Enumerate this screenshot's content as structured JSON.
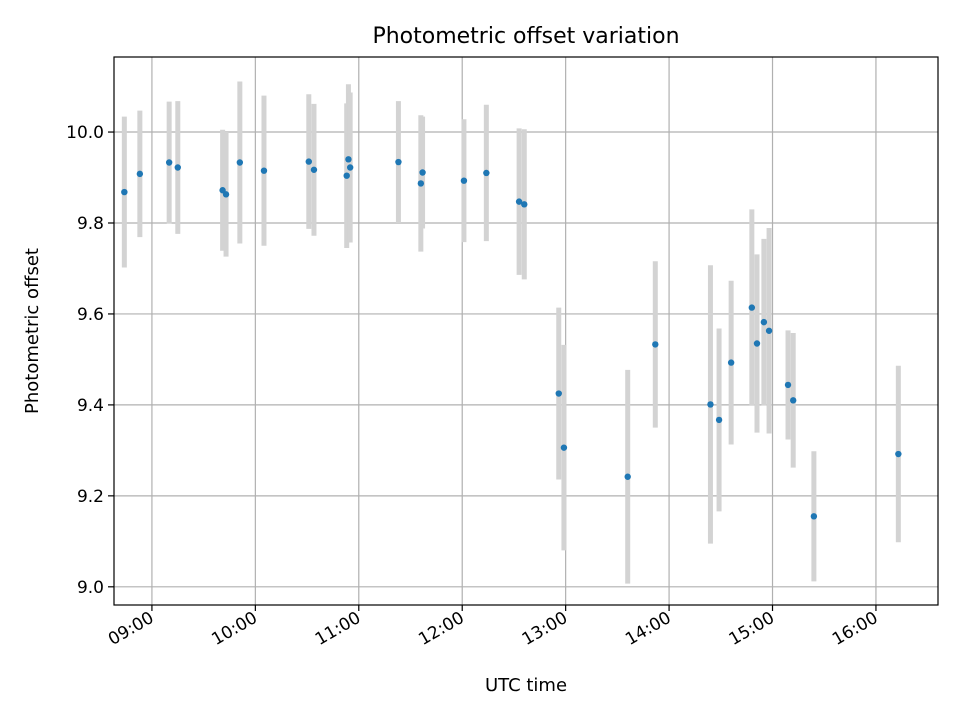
{
  "chart_data": {
    "type": "scatter",
    "title": "Photometric offset variation",
    "xlabel": "UTC time",
    "ylabel": "Photometric offset",
    "x_axis_kind": "time",
    "xlim": [
      "08:38",
      "16:36"
    ],
    "ylim": [
      8.96,
      10.165
    ],
    "x_ticks": [
      "09:00",
      "10:00",
      "11:00",
      "12:00",
      "13:00",
      "14:00",
      "15:00",
      "16:00"
    ],
    "y_ticks": [
      9.0,
      9.2,
      9.4,
      9.6,
      9.8,
      10.0
    ],
    "y_tick_labels": [
      "9.0",
      "9.2",
      "9.4",
      "9.6",
      "9.8",
      "10.0"
    ],
    "grid": true,
    "marker_color": "#1f77b4",
    "errorbar_color": "#d3d3d3",
    "points": [
      {
        "x": "08:44",
        "y": 9.868,
        "err": 0.166
      },
      {
        "x": "08:53",
        "y": 9.908,
        "err": 0.139
      },
      {
        "x": "09:10",
        "y": 9.933,
        "err": 0.134
      },
      {
        "x": "09:15",
        "y": 9.922,
        "err": 0.146
      },
      {
        "x": "09:41",
        "y": 9.872,
        "err": 0.133
      },
      {
        "x": "09:43",
        "y": 9.863,
        "err": 0.137
      },
      {
        "x": "09:51",
        "y": 9.933,
        "err": 0.178
      },
      {
        "x": "10:05",
        "y": 9.915,
        "err": 0.165
      },
      {
        "x": "10:31",
        "y": 9.935,
        "err": 0.148
      },
      {
        "x": "10:34",
        "y": 9.917,
        "err": 0.145
      },
      {
        "x": "10:53",
        "y": 9.904,
        "err": 0.159
      },
      {
        "x": "10:54",
        "y": 9.94,
        "err": 0.165
      },
      {
        "x": "10:55",
        "y": 9.922,
        "err": 0.165
      },
      {
        "x": "11:23",
        "y": 9.934,
        "err": 0.134
      },
      {
        "x": "11:36",
        "y": 9.887,
        "err": 0.15
      },
      {
        "x": "11:37",
        "y": 9.911,
        "err": 0.123
      },
      {
        "x": "12:01",
        "y": 9.893,
        "err": 0.135
      },
      {
        "x": "12:14",
        "y": 9.91,
        "err": 0.15
      },
      {
        "x": "12:33",
        "y": 9.847,
        "err": 0.161
      },
      {
        "x": "12:36",
        "y": 9.841,
        "err": 0.165
      },
      {
        "x": "12:56",
        "y": 9.425,
        "err": 0.189
      },
      {
        "x": "12:59",
        "y": 9.306,
        "err": 0.226
      },
      {
        "x": "13:36",
        "y": 9.242,
        "err": 0.235
      },
      {
        "x": "13:52",
        "y": 9.533,
        "err": 0.183
      },
      {
        "x": "14:24",
        "y": 9.401,
        "err": 0.306
      },
      {
        "x": "14:29",
        "y": 9.367,
        "err": 0.201
      },
      {
        "x": "14:36",
        "y": 9.493,
        "err": 0.18
      },
      {
        "x": "14:48",
        "y": 9.614,
        "err": 0.216
      },
      {
        "x": "14:51",
        "y": 9.535,
        "err": 0.196
      },
      {
        "x": "14:55",
        "y": 9.582,
        "err": 0.183
      },
      {
        "x": "14:58",
        "y": 9.563,
        "err": 0.226
      },
      {
        "x": "15:09",
        "y": 9.444,
        "err": 0.12
      },
      {
        "x": "15:12",
        "y": 9.41,
        "err": 0.148
      },
      {
        "x": "15:24",
        "y": 9.155,
        "err": 0.143
      },
      {
        "x": "16:13",
        "y": 9.292,
        "err": 0.194
      }
    ]
  }
}
